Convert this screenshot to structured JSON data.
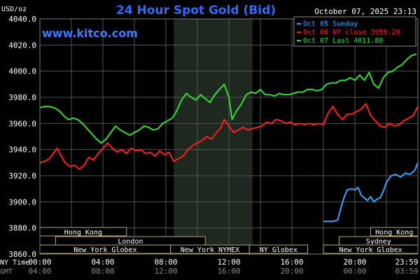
{
  "chart_data": {
    "type": "line",
    "title": "24 Hour Spot Gold (Bid)",
    "ylabel": "USD/oz",
    "watermark": "www.kitco.com",
    "timestamp": "October 07, 2025 23:13",
    "ylim": [
      3860,
      4040
    ],
    "yticks": [
      "4040.0",
      "4020.0",
      "4000.0",
      "3980.0",
      "3960.0",
      "3940.0",
      "3920.0",
      "3900.0",
      "3880.0",
      "3860.0"
    ],
    "xticks_ny": [
      "00:00",
      "04:00",
      "08:00",
      "12:00",
      "16:00",
      "20:00",
      "23:59"
    ],
    "xticks_gmt": [
      "04:00",
      "08:00",
      "12:00",
      "16:00",
      "20:00",
      "00:00",
      "03:59"
    ],
    "x_axis_label_ny": "NY Time",
    "x_axis_label_gmt": "GMT",
    "x_range_hours": [
      0,
      24
    ],
    "highlight_hours": [
      8.5,
      13.5
    ],
    "legend_position": "top-right",
    "series": [
      {
        "name": "Oct 05 Sunday",
        "color": "#33a6ff",
        "x": [
          18.0,
          18.6,
          18.9,
          19.1,
          19.3,
          19.5,
          19.8,
          20.0,
          20.2,
          20.4,
          20.6,
          20.8,
          21.0,
          21.2,
          21.4,
          21.6,
          21.8,
          22.0,
          22.3,
          22.6,
          22.9,
          23.2,
          23.5,
          23.8,
          24.0
        ],
        "y": [
          3885,
          3885,
          3886,
          3895,
          3903,
          3909,
          3910,
          3909,
          3911,
          3905,
          3903,
          3901,
          3904,
          3900,
          3902,
          3903,
          3908,
          3915,
          3920,
          3921,
          3919,
          3922,
          3921,
          3924,
          3930
        ]
      },
      {
        "name": "Oct 06 NY close 3959.20",
        "color": "#ff2020",
        "x": [
          0.0,
          0.3,
          0.6,
          0.9,
          1.1,
          1.3,
          1.6,
          1.9,
          2.2,
          2.5,
          2.8,
          3.1,
          3.4,
          3.7,
          4.0,
          4.3,
          4.6,
          4.9,
          5.2,
          5.5,
          5.8,
          6.1,
          6.4,
          6.7,
          7.0,
          7.3,
          7.6,
          7.9,
          8.2,
          8.5,
          8.8,
          9.1,
          9.4,
          9.7,
          10.0,
          10.3,
          10.6,
          10.9,
          11.2,
          11.5,
          11.7,
          12.0,
          12.3,
          12.6,
          12.9,
          13.2,
          13.5,
          13.8,
          14.1,
          14.4,
          14.7,
          15.0,
          15.3,
          15.6,
          15.9,
          16.2,
          16.5,
          16.8,
          17.1,
          17.4,
          17.7,
          18.0,
          18.3,
          18.6,
          18.9,
          19.2,
          19.5,
          19.8,
          20.1,
          20.4,
          20.7,
          21.0,
          21.3,
          21.6,
          21.9,
          22.2,
          22.5,
          22.8,
          23.1,
          23.4,
          23.7,
          24.0
        ],
        "y": [
          3930,
          3931,
          3933,
          3938,
          3941,
          3936,
          3930,
          3927,
          3928,
          3925,
          3928,
          3934,
          3932,
          3937,
          3941,
          3945,
          3941,
          3938,
          3940,
          3937,
          3941,
          3939,
          3940,
          3937,
          3938,
          3935,
          3939,
          3936,
          3938,
          3931,
          3933,
          3935,
          3940,
          3943,
          3945,
          3947,
          3950,
          3948,
          3953,
          3957,
          3963,
          3958,
          3953,
          3955,
          3957,
          3955,
          3956,
          3957,
          3958,
          3961,
          3960,
          3963,
          3962,
          3960,
          3961,
          3959,
          3960,
          3959,
          3960,
          3959,
          3960,
          3959,
          3968,
          3973,
          3967,
          3963,
          3967,
          3967,
          3969,
          3971,
          3975,
          3966,
          3962,
          3958,
          3957,
          3960,
          3958,
          3959,
          3962,
          3964,
          3966,
          3973
        ]
      },
      {
        "name": "Oct 07 Last 4011.80",
        "color": "#33dd33",
        "x": [
          0.0,
          0.3,
          0.6,
          0.9,
          1.2,
          1.5,
          1.8,
          2.1,
          2.4,
          2.7,
          3.0,
          3.3,
          3.6,
          3.9,
          4.2,
          4.5,
          4.8,
          5.1,
          5.4,
          5.7,
          6.0,
          6.3,
          6.6,
          6.9,
          7.2,
          7.5,
          7.8,
          8.1,
          8.4,
          8.7,
          9.0,
          9.3,
          9.6,
          9.9,
          10.2,
          10.5,
          10.8,
          11.1,
          11.4,
          11.7,
          12.0,
          12.2,
          12.5,
          12.8,
          13.1,
          13.4,
          13.7,
          14.0,
          14.3,
          14.6,
          14.9,
          15.2,
          15.5,
          15.8,
          16.1,
          16.4,
          16.7,
          17.0,
          17.3,
          17.6,
          17.9,
          18.2,
          18.5,
          18.8,
          19.1,
          19.4,
          19.7,
          20.0,
          20.3,
          20.6,
          20.9,
          21.2,
          21.5,
          21.8,
          22.1,
          22.4,
          22.7,
          23.0,
          23.3,
          23.6,
          23.9
        ],
        "y": [
          3972,
          3973,
          3973,
          3972,
          3970,
          3966,
          3963,
          3964,
          3963,
          3960,
          3956,
          3952,
          3948,
          3945,
          3948,
          3953,
          3958,
          3955,
          3953,
          3951,
          3953,
          3955,
          3958,
          3957,
          3955,
          3956,
          3960,
          3962,
          3964,
          3970,
          3978,
          3983,
          3980,
          3978,
          3982,
          3979,
          3976,
          3982,
          3986,
          3990,
          3980,
          3963,
          3970,
          3975,
          3982,
          3984,
          3983,
          3986,
          3982,
          3982,
          3981,
          3983,
          3982,
          3982,
          3983,
          3984,
          3984,
          3986,
          3986,
          3985,
          3986,
          3990,
          3991,
          3991,
          3993,
          3993,
          3995,
          3993,
          3997,
          3993,
          3999,
          3990,
          3987,
          3995,
          3999,
          4000,
          4003,
          4005,
          4009,
          4012,
          4013
        ]
      }
    ],
    "sessions": [
      {
        "label": "Hong Kong",
        "row": 0,
        "start": 0.0,
        "end": 5.5
      },
      {
        "label": "Hong Kong",
        "row": 0,
        "start": 21.0,
        "end": 24.0
      },
      {
        "label": "London",
        "row": 1,
        "start": 1.0,
        "end": 10.5
      },
      {
        "label": "Sydney",
        "row": 1,
        "start": 19.0,
        "end": 24.0
      },
      {
        "label": "New York Globex",
        "row": 2,
        "start": 0.0,
        "end": 8.3
      },
      {
        "label": "New York NYMEX",
        "row": 2,
        "start": 8.3,
        "end": 13.3
      },
      {
        "label": "NY Globex",
        "row": 2,
        "start": 13.3,
        "end": 17.0
      },
      {
        "label": "New York Globex",
        "row": 2,
        "start": 18.0,
        "end": 24.0
      }
    ]
  },
  "colors": {
    "background": "#000000",
    "grid": "#5a5a5a",
    "axis_text": "#ffffff",
    "title": "#2d6cff",
    "watermark": "#3d7cff",
    "highlight": "#1f2a1f",
    "session_border": "#b8a86a"
  }
}
